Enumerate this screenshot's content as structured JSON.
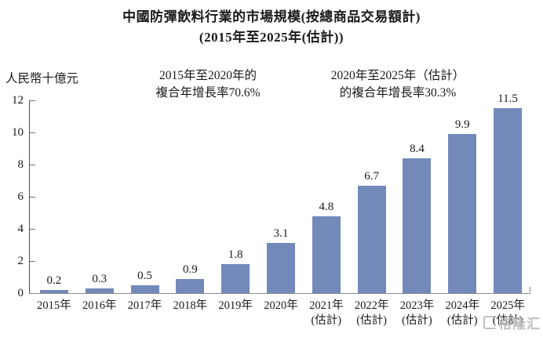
{
  "title": {
    "line1": "中國防彈飲料行業的市場規模(按總商品交易額計)",
    "line2": "(2015年至2025年(估計))"
  },
  "y_axis": {
    "unit_label": "人民幣十億元",
    "ticks": [
      0,
      2,
      4,
      6,
      8,
      10,
      12
    ]
  },
  "annotations": [
    {
      "line1": "2015年至2020年的",
      "line2": "複合年增長率70.6%"
    },
    {
      "line1": "2020年至2025年（估計）",
      "line2": "的複合年增長率30.3%"
    }
  ],
  "watermark": {
    "text": "格隆汇"
  },
  "chart_data": {
    "type": "bar",
    "title": "中國防彈飲料行業的市場規模(按總商品交易額計)(2015年至2025年(估計))",
    "ylabel": "人民幣十億元",
    "ylim": [
      0,
      12
    ],
    "grid": false,
    "bar_color": "#7289BA",
    "categories": [
      {
        "year": "2015年",
        "note": ""
      },
      {
        "year": "2016年",
        "note": ""
      },
      {
        "year": "2017年",
        "note": ""
      },
      {
        "year": "2018年",
        "note": ""
      },
      {
        "year": "2019年",
        "note": ""
      },
      {
        "year": "2020年",
        "note": ""
      },
      {
        "year": "2021年",
        "note": "(估計)"
      },
      {
        "year": "2022年",
        "note": "(估計)"
      },
      {
        "year": "2023年",
        "note": "(估計)"
      },
      {
        "year": "2024年",
        "note": "(估計)"
      },
      {
        "year": "2025年",
        "note": "(估計)"
      }
    ],
    "values": [
      0.2,
      0.3,
      0.5,
      0.9,
      1.8,
      3.1,
      4.8,
      6.7,
      8.4,
      9.9,
      11.5
    ]
  }
}
